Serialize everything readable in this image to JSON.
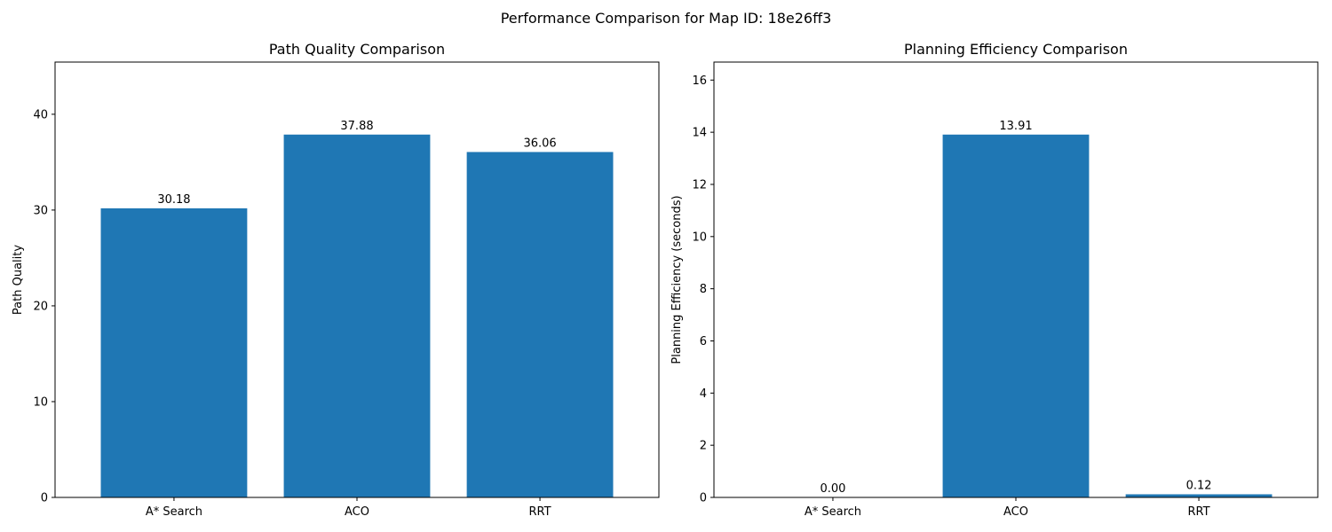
{
  "suptitle": "Performance Comparison for Map ID: 18e26ff3",
  "chart_data": [
    {
      "type": "bar",
      "title": "Path Quality Comparison",
      "xlabel": "",
      "ylabel": "Path Quality",
      "categories": [
        "A* Search",
        "ACO",
        "RRT"
      ],
      "values": [
        30.18,
        37.88,
        36.06
      ],
      "value_labels": [
        "30.18",
        "37.88",
        "36.06"
      ],
      "ylim": [
        0,
        45.45
      ],
      "yticks": [
        0,
        10,
        20,
        30,
        40
      ],
      "grid": false,
      "bar_color": "#1f77b4"
    },
    {
      "type": "bar",
      "title": "Planning Efficiency Comparison",
      "xlabel": "",
      "ylabel": "Planning Efficiency (seconds)",
      "categories": [
        "A* Search",
        "ACO",
        "RRT"
      ],
      "values": [
        0.0,
        13.91,
        0.12
      ],
      "value_labels": [
        "0.00",
        "13.91",
        "0.12"
      ],
      "ylim": [
        0,
        16.69
      ],
      "yticks": [
        0,
        2,
        4,
        6,
        8,
        10,
        12,
        14,
        16
      ],
      "grid": false,
      "bar_color": "#1f77b4"
    }
  ]
}
